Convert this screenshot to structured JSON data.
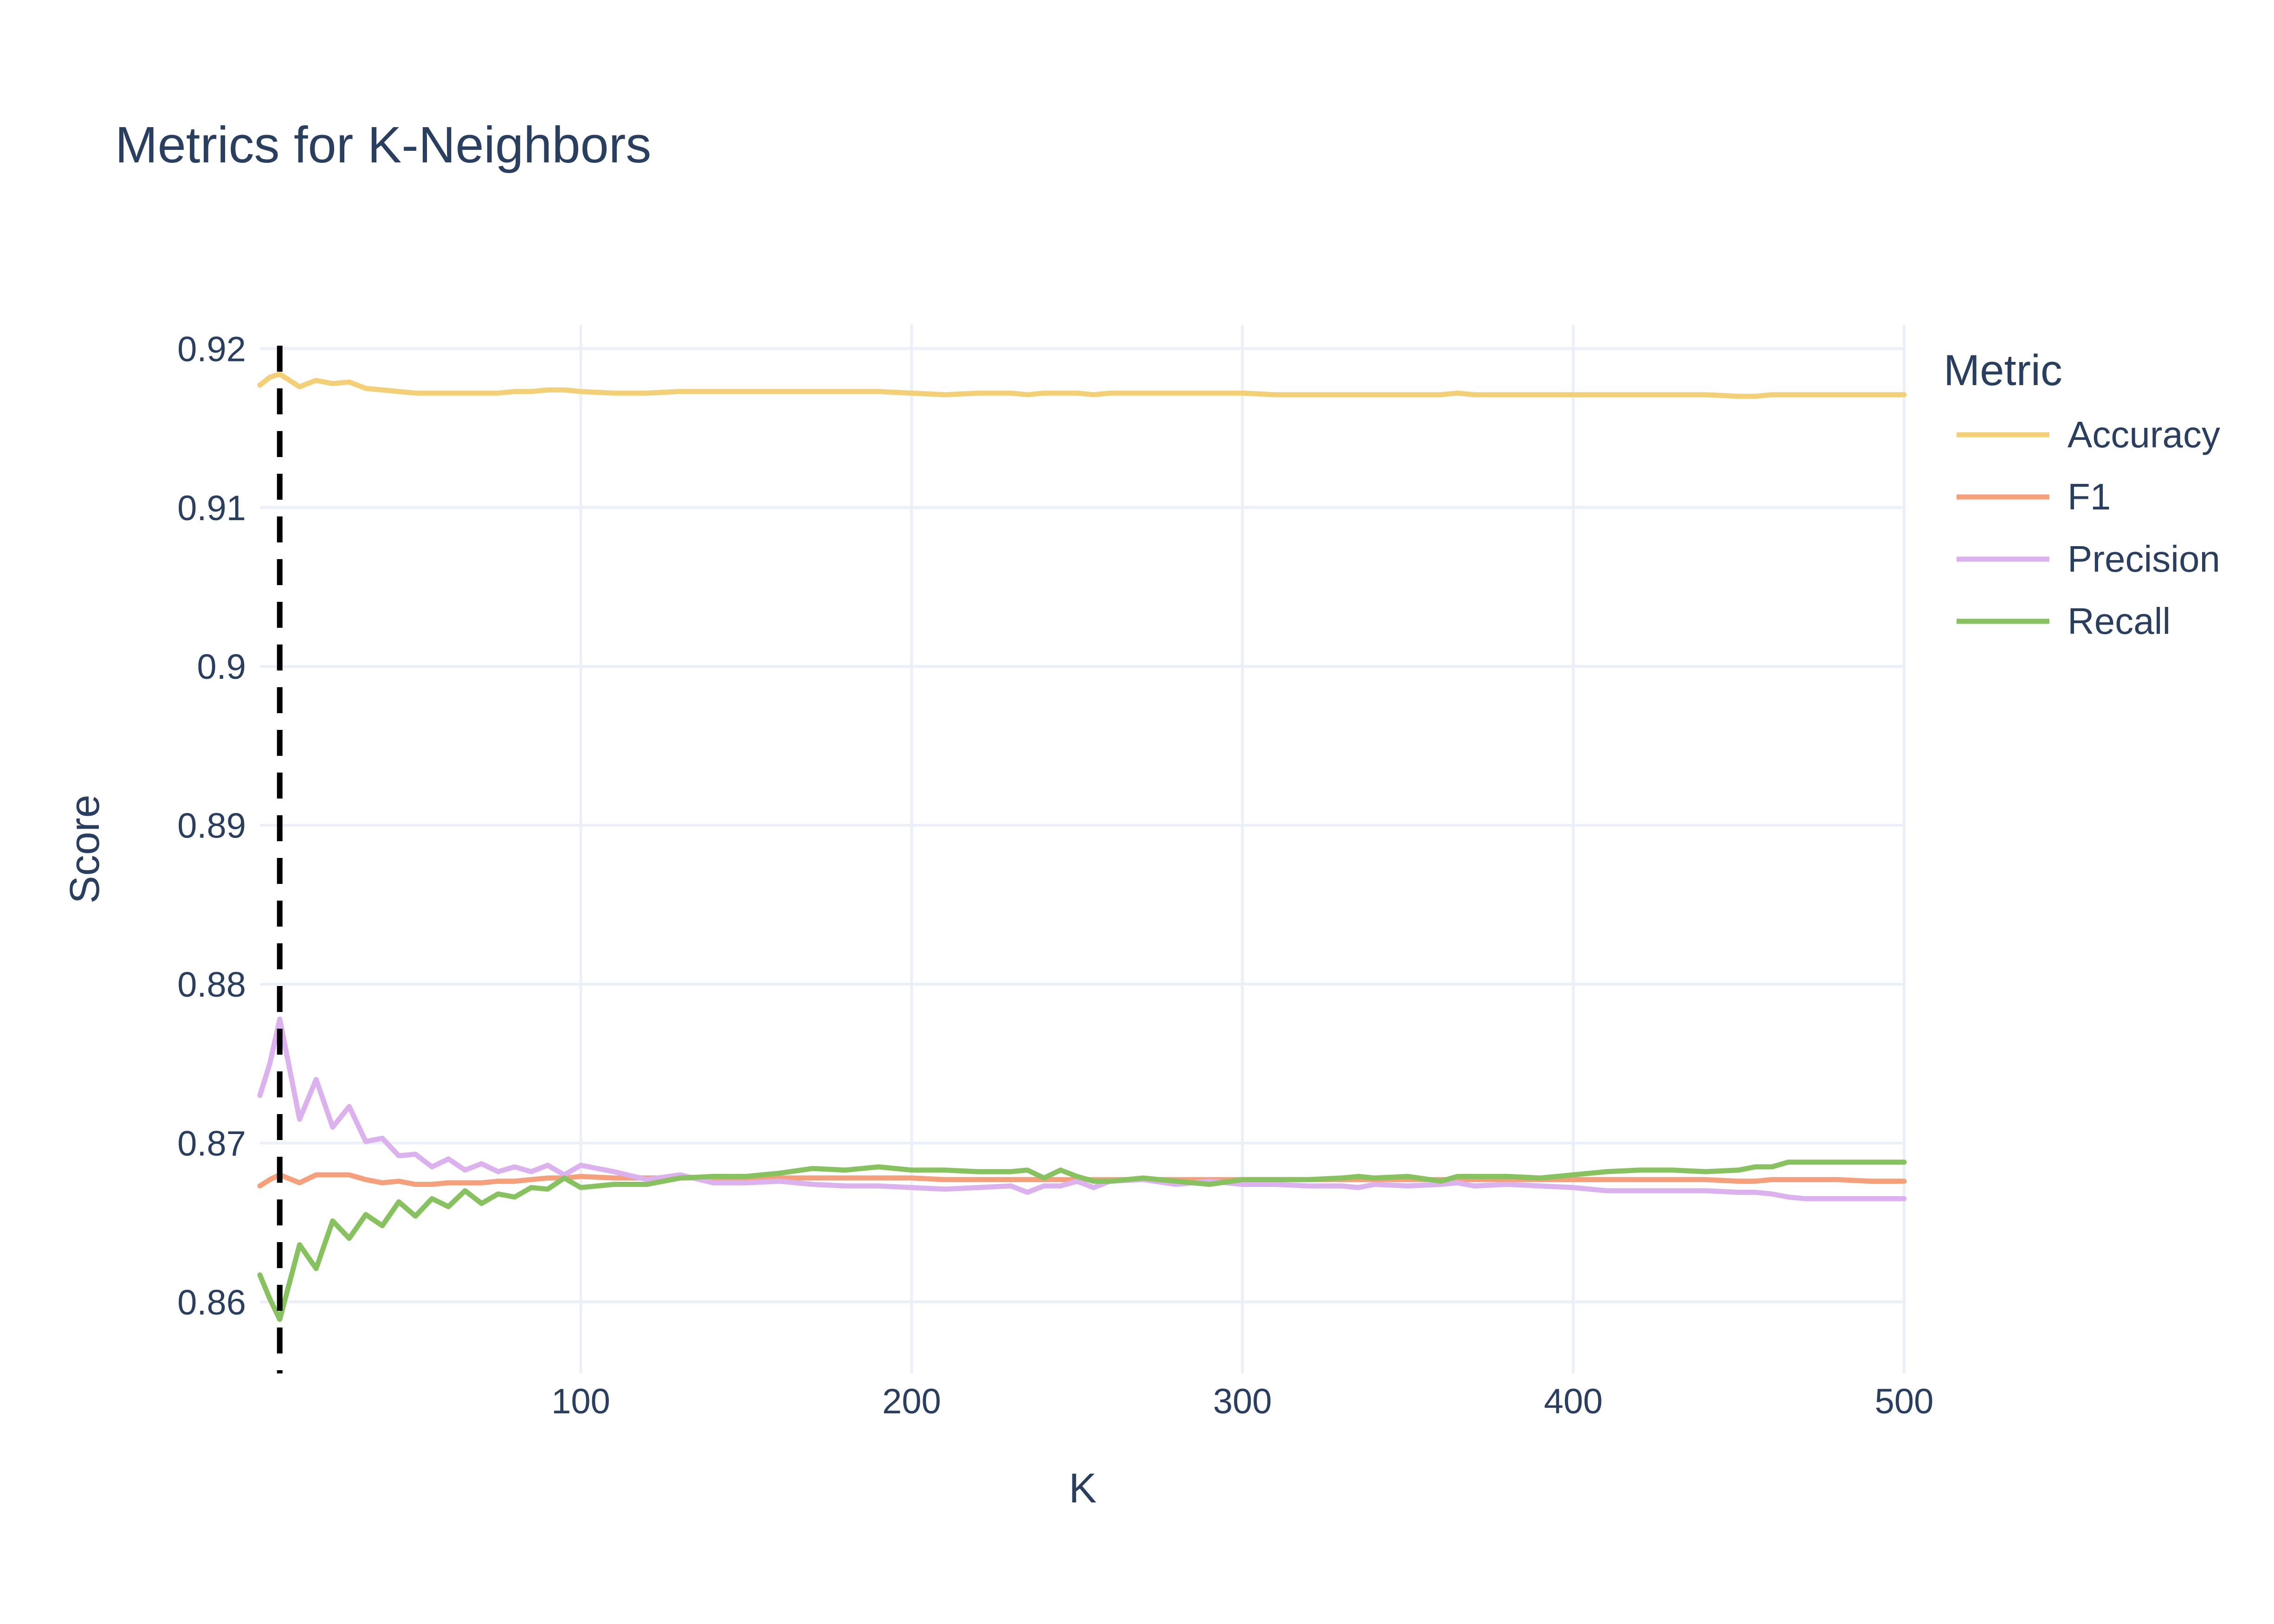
{
  "chart_data": {
    "type": "line",
    "title": "Metrics for K-Neighbors",
    "xlabel": "K",
    "ylabel": "Score",
    "xlim": [
      3,
      500
    ],
    "ylim": [
      0.8555,
      0.9215
    ],
    "x_ticks": [
      100,
      200,
      300,
      400,
      500
    ],
    "y_ticks": [
      0.86,
      0.87,
      0.88,
      0.89,
      0.9,
      0.91,
      0.92
    ],
    "y_tick_labels": [
      "0.86",
      "0.87",
      "0.88",
      "0.89",
      "0.9",
      "0.91",
      "0.92"
    ],
    "grid": true,
    "legend_title": "Metric",
    "legend_position": "right",
    "vertical_marker": {
      "x": 9,
      "style": "dashed",
      "color": "#000000"
    },
    "x": [
      3,
      6,
      9,
      15,
      20,
      25,
      30,
      35,
      40,
      45,
      50,
      55,
      60,
      65,
      70,
      75,
      80,
      85,
      90,
      95,
      100,
      110,
      120,
      130,
      140,
      150,
      160,
      170,
      180,
      190,
      200,
      210,
      220,
      230,
      235,
      240,
      245,
      250,
      255,
      260,
      270,
      280,
      290,
      300,
      310,
      320,
      330,
      335,
      340,
      350,
      360,
      365,
      370,
      380,
      390,
      400,
      410,
      420,
      430,
      440,
      450,
      455,
      460,
      465,
      470,
      480,
      490,
      500
    ],
    "series": [
      {
        "name": "Accuracy",
        "color": "#f3d078",
        "values": [
          0.9177,
          0.9182,
          0.9184,
          0.9176,
          0.918,
          0.9178,
          0.9179,
          0.9175,
          0.9174,
          0.9173,
          0.9172,
          0.9172,
          0.9172,
          0.9172,
          0.9172,
          0.9172,
          0.9173,
          0.9173,
          0.9174,
          0.9174,
          0.9173,
          0.9172,
          0.9172,
          0.9173,
          0.9173,
          0.9173,
          0.9173,
          0.9173,
          0.9173,
          0.9173,
          0.9172,
          0.9171,
          0.9172,
          0.9172,
          0.9171,
          0.9172,
          0.9172,
          0.9172,
          0.9171,
          0.9172,
          0.9172,
          0.9172,
          0.9172,
          0.9172,
          0.9171,
          0.9171,
          0.9171,
          0.9171,
          0.9171,
          0.9171,
          0.9171,
          0.9172,
          0.9171,
          0.9171,
          0.9171,
          0.9171,
          0.9171,
          0.9171,
          0.9171,
          0.9171,
          0.917,
          0.917,
          0.9171,
          0.9171,
          0.9171,
          0.9171,
          0.9171,
          0.9171
        ]
      },
      {
        "name": "F1",
        "color": "#f4a07c",
        "values": [
          0.8673,
          0.8677,
          0.868,
          0.8675,
          0.868,
          0.868,
          0.868,
          0.8677,
          0.8675,
          0.8676,
          0.8674,
          0.8674,
          0.8675,
          0.8675,
          0.8675,
          0.8676,
          0.8676,
          0.8677,
          0.8678,
          0.8678,
          0.8679,
          0.8678,
          0.8678,
          0.8678,
          0.8678,
          0.8678,
          0.8678,
          0.8678,
          0.8678,
          0.8678,
          0.8678,
          0.8677,
          0.8677,
          0.8677,
          0.8677,
          0.8677,
          0.8677,
          0.8677,
          0.8677,
          0.8677,
          0.8677,
          0.8677,
          0.8677,
          0.8677,
          0.8677,
          0.8677,
          0.8677,
          0.8677,
          0.8677,
          0.8677,
          0.8677,
          0.8677,
          0.8677,
          0.8677,
          0.8677,
          0.8677,
          0.8677,
          0.8677,
          0.8677,
          0.8677,
          0.8676,
          0.8676,
          0.8677,
          0.8677,
          0.8677,
          0.8677,
          0.8676,
          0.8676
        ]
      },
      {
        "name": "Precision",
        "color": "#dbb2ed",
        "values": [
          0.873,
          0.875,
          0.8778,
          0.8715,
          0.874,
          0.871,
          0.8723,
          0.8701,
          0.8703,
          0.8692,
          0.8693,
          0.8685,
          0.869,
          0.8683,
          0.8687,
          0.8682,
          0.8685,
          0.8682,
          0.8686,
          0.868,
          0.8686,
          0.8682,
          0.8677,
          0.868,
          0.8675,
          0.8675,
          0.8676,
          0.8674,
          0.8673,
          0.8673,
          0.8672,
          0.8671,
          0.8672,
          0.8673,
          0.8669,
          0.8673,
          0.8673,
          0.8676,
          0.8672,
          0.8676,
          0.8677,
          0.8674,
          0.8676,
          0.8674,
          0.8674,
          0.8673,
          0.8673,
          0.8672,
          0.8674,
          0.8673,
          0.8674,
          0.8675,
          0.8673,
          0.8674,
          0.8673,
          0.8672,
          0.867,
          0.867,
          0.867,
          0.867,
          0.8669,
          0.8669,
          0.8668,
          0.8666,
          0.8665,
          0.8665,
          0.8665,
          0.8665
        ]
      },
      {
        "name": "Recall",
        "color": "#88c160",
        "values": [
          0.8617,
          0.8602,
          0.8589,
          0.8636,
          0.8621,
          0.8651,
          0.864,
          0.8655,
          0.8648,
          0.8663,
          0.8654,
          0.8665,
          0.866,
          0.867,
          0.8662,
          0.8668,
          0.8666,
          0.8672,
          0.8671,
          0.8678,
          0.8672,
          0.8674,
          0.8674,
          0.8678,
          0.8679,
          0.8679,
          0.8681,
          0.8684,
          0.8683,
          0.8685,
          0.8683,
          0.8683,
          0.8682,
          0.8682,
          0.8683,
          0.8678,
          0.8683,
          0.8679,
          0.8676,
          0.8676,
          0.8678,
          0.8676,
          0.8674,
          0.8677,
          0.8677,
          0.8677,
          0.8678,
          0.8679,
          0.8678,
          0.8679,
          0.8676,
          0.8679,
          0.8679,
          0.8679,
          0.8678,
          0.868,
          0.8682,
          0.8683,
          0.8683,
          0.8682,
          0.8683,
          0.8685,
          0.8685,
          0.8688,
          0.8688,
          0.8688,
          0.8688,
          0.8688
        ]
      }
    ]
  }
}
